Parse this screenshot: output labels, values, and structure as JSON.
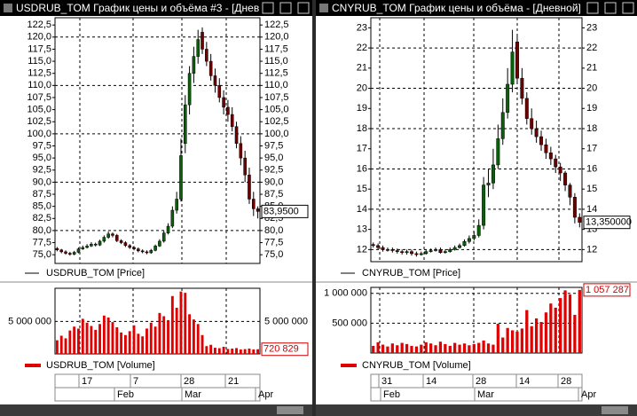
{
  "windows": [
    {
      "title": "USDRUB_TOM График цены и объёма #3 - [Днев",
      "price": {
        "legend": "USDRUB_TOM [Price]",
        "ylim": [
          73.2,
          124
        ],
        "yticks": [
          {
            "value": 75,
            "label": "75,0"
          },
          {
            "value": 77.5,
            "label": "77,5"
          },
          {
            "value": 80,
            "label": "80,0"
          },
          {
            "value": 82.5,
            "label": "82,5"
          },
          {
            "value": 85,
            "label": "85,0"
          },
          {
            "value": 87.5,
            "label": "87,5"
          },
          {
            "value": 90,
            "label": "90,0"
          },
          {
            "value": 92.5,
            "label": "92,5"
          },
          {
            "value": 95,
            "label": "95,0"
          },
          {
            "value": 97.5,
            "label": "97,5"
          },
          {
            "value": 100,
            "label": "100,0"
          },
          {
            "value": 102.5,
            "label": "102,5"
          },
          {
            "value": 105,
            "label": "105,0"
          },
          {
            "value": 107.5,
            "label": "107,5"
          },
          {
            "value": 110,
            "label": "110,0"
          },
          {
            "value": 112.5,
            "label": "112,5"
          },
          {
            "value": 115,
            "label": "115,0"
          },
          {
            "value": 117.5,
            "label": "117,5"
          },
          {
            "value": 120,
            "label": "120,0"
          },
          {
            "value": 122.5,
            "label": "122,5"
          }
        ],
        "last": {
          "value": 83.95,
          "label": "83,9500"
        },
        "open": [
          76.3,
          76.0,
          75.6,
          75.3,
          75.1,
          75.5,
          76.2,
          76.5,
          76.8,
          77.2,
          77.0,
          77.8,
          78.6,
          79.3,
          79.0,
          77.9,
          77.5,
          76.9,
          76.5,
          76.2,
          75.8,
          75.6,
          75.4,
          75.9,
          76.8,
          77.8,
          79.5,
          80.9,
          84.2,
          86.5,
          98.0,
          106.0,
          112.5,
          116.0,
          121.0,
          117.5,
          115.0,
          112.0,
          110.0,
          107.5,
          105.5,
          104.0,
          101.5,
          98.0,
          95.0,
          91.5,
          86.5,
          84.5
        ],
        "high": [
          76.6,
          76.2,
          75.9,
          75.6,
          75.8,
          76.5,
          76.9,
          77.2,
          77.6,
          77.5,
          78.1,
          79.0,
          79.8,
          79.6,
          79.3,
          78.2,
          77.8,
          77.2,
          76.8,
          76.5,
          76.1,
          75.9,
          76.2,
          77.1,
          78.2,
          80.0,
          81.5,
          85.0,
          88.0,
          99.0,
          108.0,
          114.0,
          118.0,
          121.5,
          122.0,
          119.0,
          116.5,
          113.5,
          111.5,
          109.0,
          107.0,
          105.5,
          102.5,
          99.5,
          96.5,
          93.0,
          88.0,
          85.0
        ],
        "low": [
          75.7,
          75.3,
          75.0,
          74.8,
          74.9,
          75.3,
          76.0,
          76.3,
          76.6,
          76.7,
          76.8,
          77.5,
          78.3,
          78.6,
          77.6,
          77.2,
          76.6,
          76.2,
          75.9,
          75.5,
          75.3,
          75.1,
          75.2,
          75.7,
          76.6,
          77.5,
          79.2,
          80.5,
          83.5,
          86.0,
          96.0,
          104.0,
          110.5,
          114.5,
          116.5,
          114.0,
          111.0,
          108.5,
          106.5,
          104.0,
          102.5,
          100.5,
          97.0,
          93.5,
          90.0,
          85.5,
          83.0,
          82.5
        ],
        "close": [
          76.0,
          75.6,
          75.3,
          75.1,
          75.5,
          76.2,
          76.5,
          76.8,
          77.2,
          77.0,
          77.8,
          78.6,
          79.3,
          79.0,
          77.9,
          77.5,
          76.9,
          76.5,
          76.2,
          75.8,
          75.6,
          75.4,
          75.9,
          76.8,
          77.8,
          79.5,
          80.9,
          84.2,
          86.5,
          95.5,
          106.0,
          112.5,
          116.0,
          119.5,
          117.5,
          115.0,
          112.0,
          110.0,
          107.5,
          105.5,
          104.0,
          101.5,
          98.0,
          95.0,
          91.5,
          86.5,
          84.5,
          83.95
        ]
      },
      "volume": {
        "legend": "USDRUB_TOM [Volume]",
        "ylim": [
          0,
          10100000
        ],
        "yticks": [
          {
            "value": 5000000,
            "label": "5 000 000"
          }
        ],
        "last": {
          "value": 720829,
          "label": "720 829"
        },
        "values": [
          2100000,
          2800000,
          2400000,
          3600000,
          4200000,
          3900000,
          5400000,
          4800000,
          4300000,
          3700000,
          4600000,
          5900000,
          5600000,
          4900000,
          4100000,
          3300000,
          2900000,
          3500000,
          4400000,
          3100000,
          2700000,
          3900000,
          4800000,
          4200000,
          6300000,
          5800000,
          5200000,
          8900000,
          7100000,
          9600000,
          9400000,
          6100000,
          5300000,
          4600000,
          2900000,
          1200000,
          1400000,
          950000,
          880000,
          1100000,
          760000,
          820000,
          900000,
          680000,
          740000,
          820000,
          690000,
          720829
        ]
      },
      "days": [
        "17",
        "7",
        "28",
        "21"
      ],
      "months": [
        "Feb",
        "Mar",
        "Apr"
      ]
    },
    {
      "title": "CNYRUB_TOM График цены и объёма - [Дневной]",
      "price": {
        "legend": "CNYRUB_TOM [Price]",
        "ylim": [
          11.4,
          23.5
        ],
        "yticks": [
          12,
          13,
          14,
          15,
          16,
          17,
          18,
          19,
          20,
          21,
          22,
          23
        ],
        "last": {
          "value": 13.35,
          "label": "13,350000"
        },
        "open": [
          12.25,
          12.2,
          12.1,
          12.0,
          12.0,
          11.95,
          11.9,
          11.85,
          11.9,
          11.8,
          11.75,
          11.8,
          11.9,
          11.95,
          12.0,
          11.85,
          11.9,
          12.0,
          12.1,
          12.2,
          12.4,
          12.55,
          12.7,
          13.2,
          15.2,
          15.3,
          16.2,
          17.5,
          18.8,
          20.2,
          22.3,
          20.5,
          19.5,
          18.5,
          18.0,
          17.6,
          17.2,
          16.8,
          16.5,
          16.1,
          15.8,
          15.2,
          14.6,
          13.6
        ],
        "high": [
          12.35,
          12.3,
          12.2,
          12.1,
          12.1,
          12.05,
          12.0,
          12.0,
          12.0,
          11.9,
          11.9,
          12.0,
          12.05,
          12.1,
          12.1,
          12.0,
          12.1,
          12.2,
          12.3,
          12.5,
          12.7,
          12.9,
          13.5,
          15.6,
          16.0,
          17.0,
          18.2,
          19.5,
          21.0,
          22.9,
          22.6,
          21.0,
          19.8,
          19.0,
          18.4,
          17.9,
          17.5,
          17.1,
          16.7,
          16.3,
          15.9,
          15.3,
          14.8,
          13.8
        ],
        "low": [
          12.1,
          12.0,
          11.9,
          11.9,
          11.85,
          11.8,
          11.75,
          11.75,
          11.7,
          11.65,
          11.7,
          11.75,
          11.85,
          11.9,
          11.8,
          11.8,
          11.85,
          11.95,
          12.05,
          12.15,
          12.3,
          12.45,
          12.6,
          13.0,
          14.6,
          15.0,
          16.0,
          17.2,
          18.5,
          19.8,
          20.2,
          19.2,
          18.2,
          17.7,
          17.3,
          16.9,
          16.5,
          16.2,
          15.8,
          15.4,
          14.9,
          14.2,
          13.3,
          13.1
        ],
        "close": [
          12.2,
          12.1,
          12.0,
          12.0,
          11.95,
          11.9,
          11.85,
          11.9,
          11.8,
          11.75,
          11.8,
          11.9,
          11.95,
          12.0,
          11.85,
          11.9,
          12.0,
          12.1,
          12.2,
          12.4,
          12.55,
          12.7,
          13.2,
          15.2,
          15.3,
          16.2,
          17.5,
          18.8,
          20.2,
          21.8,
          20.5,
          19.5,
          18.5,
          18.0,
          17.6,
          17.2,
          16.8,
          16.5,
          16.1,
          15.8,
          15.2,
          14.6,
          13.6,
          13.35
        ]
      },
      "volume": {
        "legend": "CNYRUB_TOM [Volume]",
        "ylim": [
          0,
          1100000
        ],
        "yticks": [
          {
            "value": 500000,
            "label": "500 000"
          },
          {
            "value": 1000000,
            "label": "1 000 000"
          }
        ],
        "last": {
          "value": 1057287,
          "label": "1 057 287"
        },
        "values": [
          120000,
          180000,
          140000,
          110000,
          160000,
          130000,
          170000,
          150000,
          120000,
          110000,
          140000,
          180000,
          160000,
          130000,
          190000,
          150000,
          120000,
          170000,
          140000,
          160000,
          130000,
          150000,
          170000,
          210000,
          160000,
          140000,
          490000,
          260000,
          420000,
          380000,
          360000,
          410000,
          720000,
          450000,
          580000,
          520000,
          680000,
          830000,
          760000,
          920000,
          1050000,
          980000,
          640000,
          1057287
        ]
      },
      "days": [
        "31",
        "14",
        "28",
        "14",
        "28"
      ],
      "months": [
        "Feb",
        "Mar",
        "Apr"
      ]
    }
  ]
}
